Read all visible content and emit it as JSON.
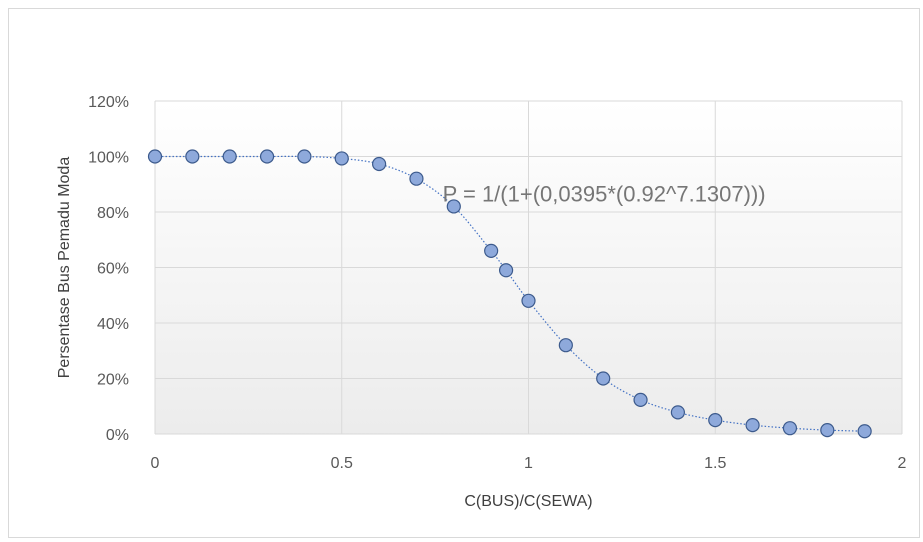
{
  "chart_data": {
    "type": "scatter",
    "title": "",
    "xlabel": "C(BUS)/C(SEWA)",
    "ylabel": "Persentase Bus Pemadu Moda",
    "xlim": [
      0,
      2
    ],
    "ylim": [
      0,
      120
    ],
    "x_ticks": [
      "0",
      "0.5",
      "1",
      "1.5",
      "2"
    ],
    "y_ticks": [
      "0%",
      "20%",
      "40%",
      "60%",
      "80%",
      "100%",
      "120%"
    ],
    "grid": true,
    "legend": "none",
    "annotation": "P = 1/(1+(0,0395*(0.92^7.1307)))",
    "marker_color": "#8EA9DB",
    "marker_edge_color": "#3C5A8C",
    "line_color": "#4472C4",
    "line_style": "dotted",
    "series": [
      {
        "x": [
          0,
          0.1,
          0.2,
          0.3,
          0.4,
          0.5,
          0.6,
          0.7,
          0.8,
          0.9,
          0.94,
          1.0,
          1.1,
          1.2,
          1.3,
          1.4,
          1.5,
          1.6,
          1.7,
          1.8,
          1.9
        ],
        "y": [
          100,
          100,
          100,
          100,
          100,
          99.3,
          97.3,
          92,
          82,
          66,
          59,
          48,
          32,
          20,
          12.3,
          7.8,
          5,
          3.2,
          2.1,
          1.4,
          1
        ]
      }
    ]
  }
}
